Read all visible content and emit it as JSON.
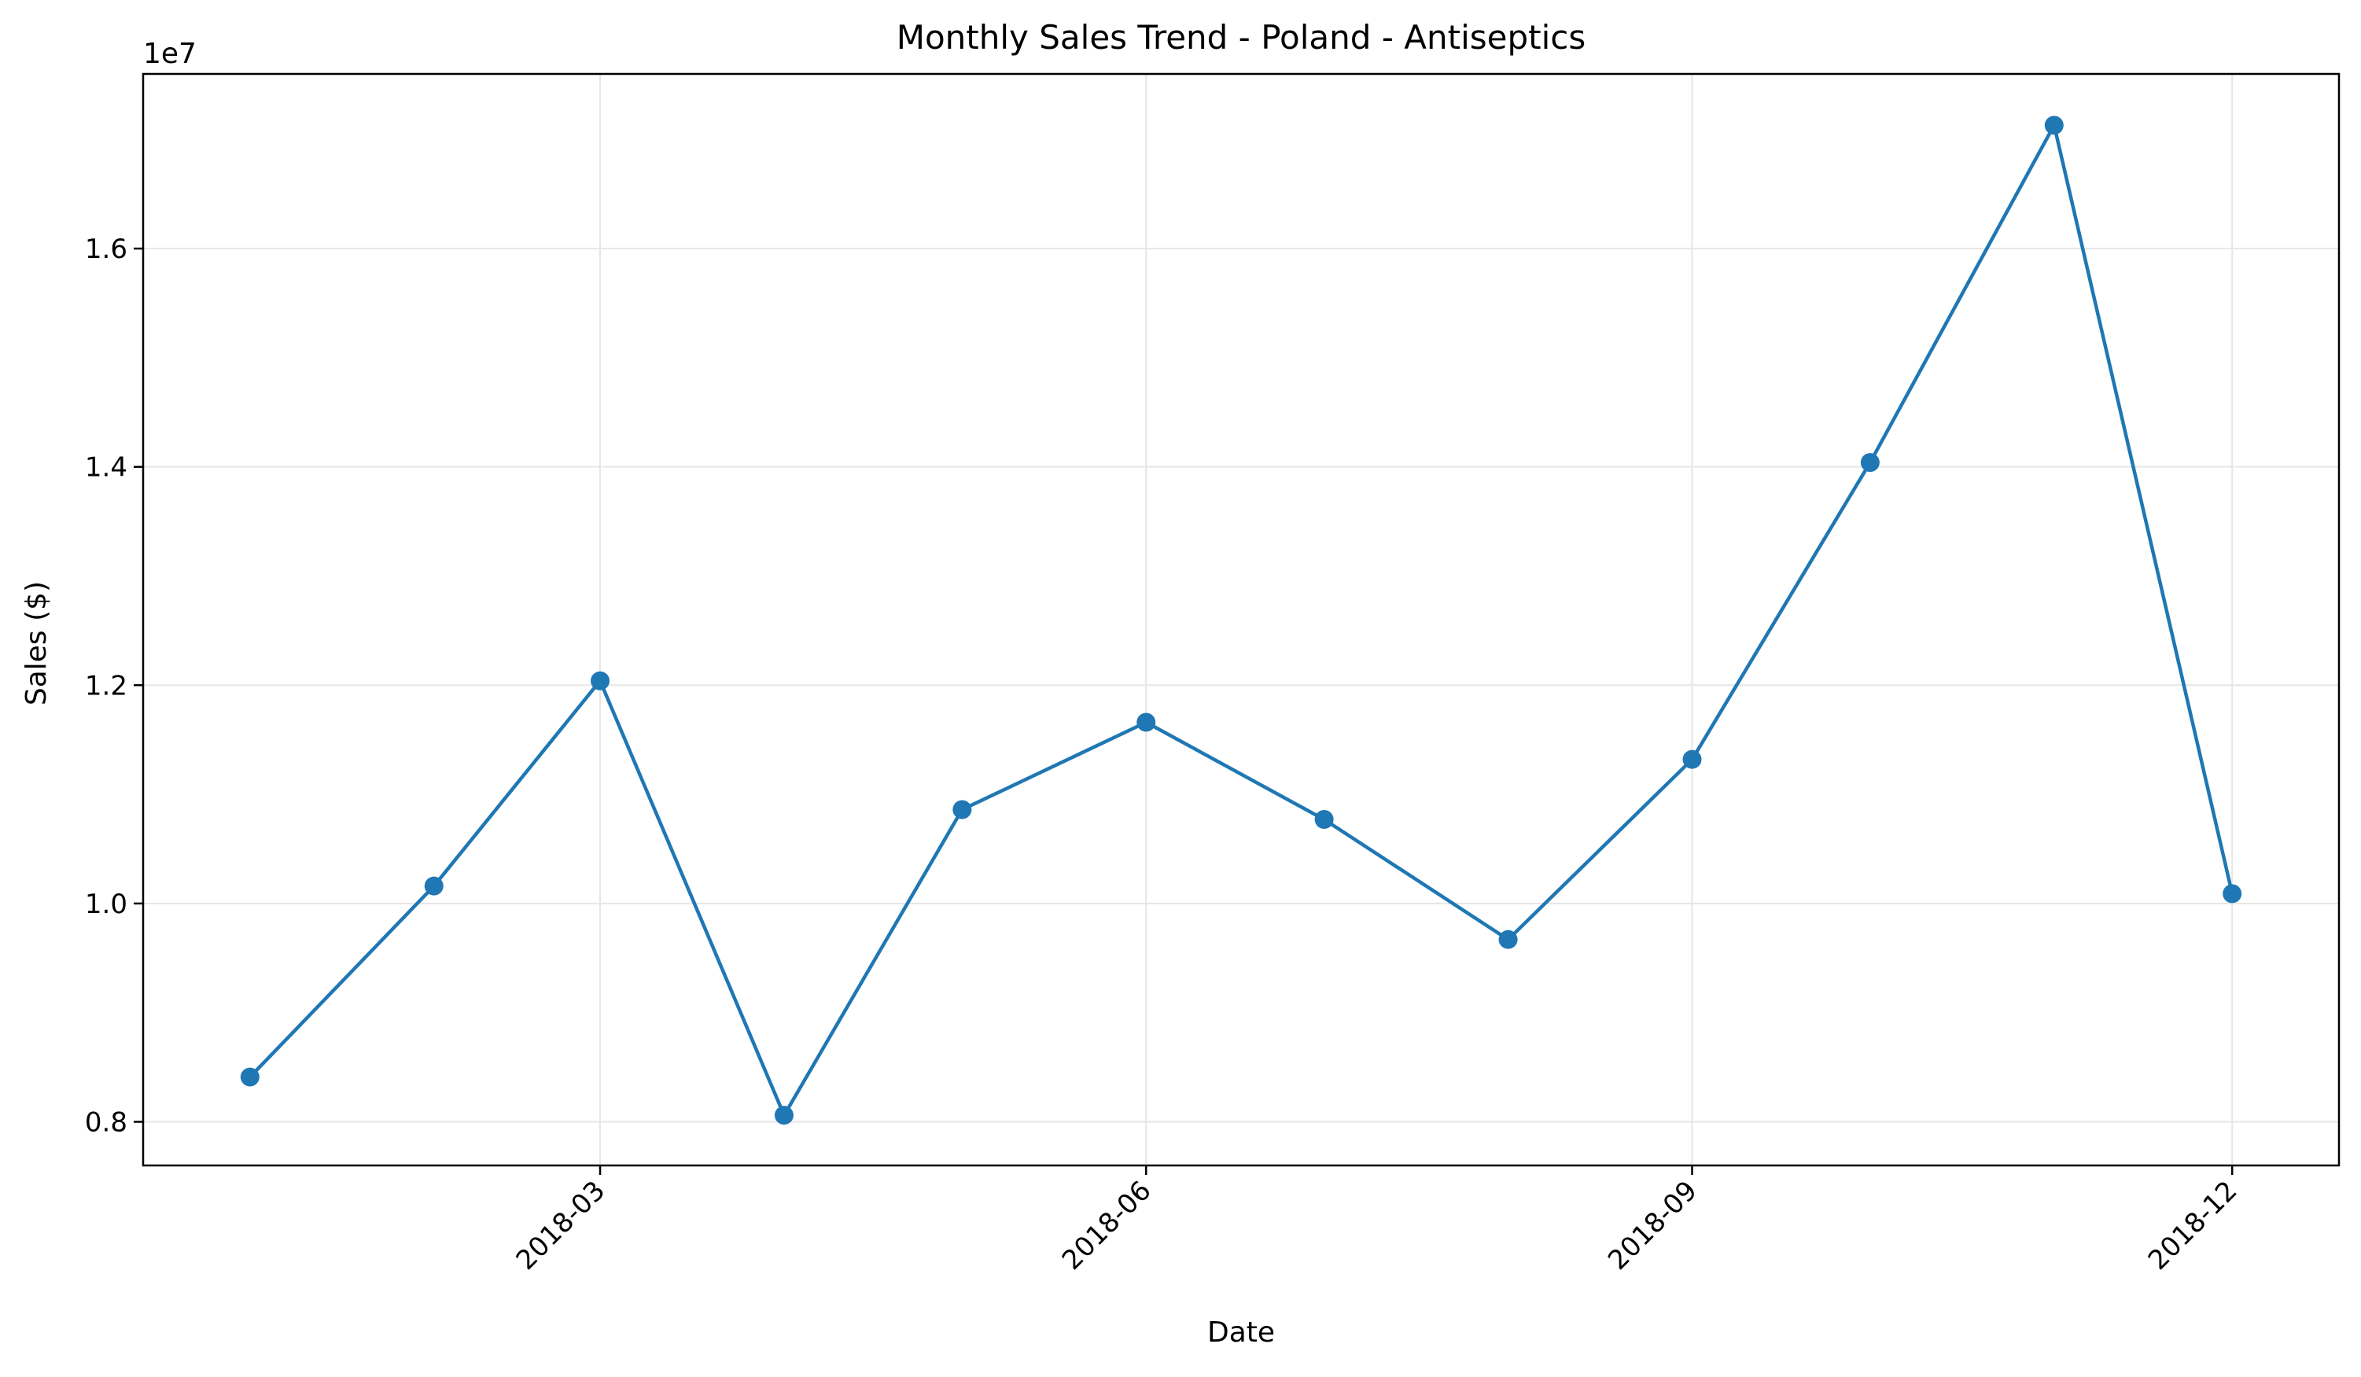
{
  "chart_data": {
    "type": "line",
    "title": "Monthly Sales Trend - Poland - Antiseptics",
    "xlabel": "Date",
    "ylabel": "Sales ($)",
    "y_offset_label": "1e7",
    "x": [
      "2018-01-01",
      "2018-02-01",
      "2018-03-01",
      "2018-04-01",
      "2018-05-01",
      "2018-06-01",
      "2018-07-01",
      "2018-08-01",
      "2018-09-01",
      "2018-10-01",
      "2018-11-01",
      "2018-12-01"
    ],
    "series": [
      {
        "values": [
          8410000,
          10160000,
          12040000,
          8060000,
          10860000,
          11660000,
          10770000,
          9670000,
          11320000,
          14040000,
          17130000,
          10090000
        ],
        "color": "#1f77b4",
        "marker": "circle"
      }
    ],
    "xlim": [
      "2017-12-14",
      "2018-12-19"
    ],
    "ylim": [
      7600000,
      17600000
    ],
    "x_ticks": [
      {
        "date": "2018-03-01",
        "label": "2018-03"
      },
      {
        "date": "2018-06-01",
        "label": "2018-06"
      },
      {
        "date": "2018-09-01",
        "label": "2018-09"
      },
      {
        "date": "2018-12-01",
        "label": "2018-12"
      }
    ],
    "y_ticks": [
      {
        "value": 8000000,
        "label": "0.8"
      },
      {
        "value": 10000000,
        "label": "1.0"
      },
      {
        "value": 12000000,
        "label": "1.2"
      },
      {
        "value": 14000000,
        "label": "1.4"
      },
      {
        "value": 16000000,
        "label": "1.6"
      }
    ],
    "grid": true,
    "grid_color": "#e6e6e6"
  }
}
